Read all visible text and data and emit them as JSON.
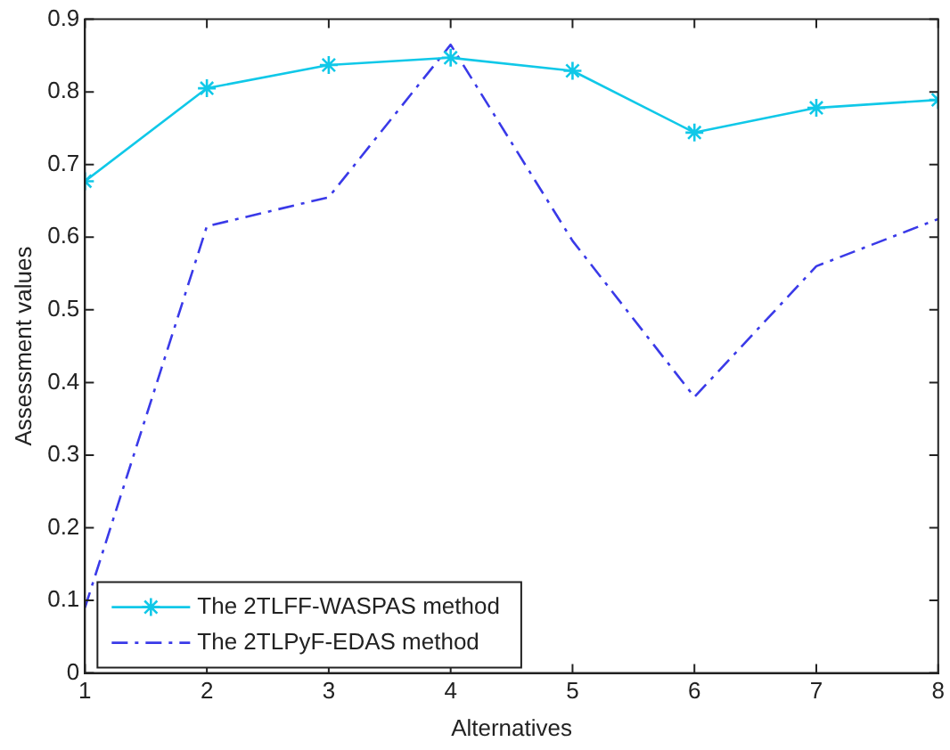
{
  "chart_data": {
    "type": "line",
    "xlabel": "Alternatives",
    "ylabel": "Assessment values",
    "x": [
      1,
      2,
      3,
      4,
      5,
      6,
      7,
      8
    ],
    "series": [
      {
        "name": "The 2TLFF-WASPAS method",
        "color": "#10c8e8",
        "marker": "cross",
        "line_style": "solid",
        "values": [
          0.677,
          0.805,
          0.837,
          0.847,
          0.829,
          0.744,
          0.778,
          0.789
        ]
      },
      {
        "name": "The 2TLPyF-EDAS method",
        "color": "#3a3ae8",
        "marker": "none",
        "line_style": "dashdot",
        "values": [
          0.09,
          0.615,
          0.655,
          0.865,
          0.595,
          0.38,
          0.56,
          0.625
        ]
      }
    ],
    "xlim": [
      1,
      8
    ],
    "xticks": [
      1,
      2,
      3,
      4,
      5,
      6,
      7,
      8
    ],
    "ylim": [
      0,
      0.9
    ],
    "yticks": [
      0,
      0.1,
      0.2,
      0.3,
      0.4,
      0.5,
      0.6,
      0.7,
      0.8,
      0.9
    ],
    "grid": false,
    "legend": "bottom left"
  }
}
